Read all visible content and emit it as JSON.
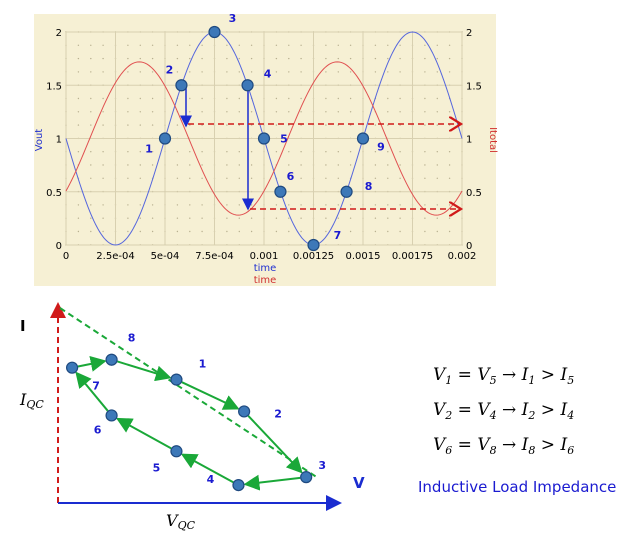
{
  "chart_data": [
    {
      "type": "line",
      "x_ticks": [
        "0",
        "2.5e-04",
        "5e-04",
        "7.5e-04",
        "0.001",
        "0.00125",
        "0.0015",
        "0.00175",
        "0.002"
      ],
      "xlim": [
        0,
        0.002
      ],
      "ylim": [
        0,
        2
      ],
      "left_ticks": [
        "0",
        "0.5",
        "1",
        "1.5",
        "2"
      ],
      "right_ticks": [
        "0",
        "0.5",
        "1",
        "1.5",
        "2"
      ],
      "ylabel_left": "Vout",
      "ylabel_right": "Itotal",
      "xlabel_series1": "time",
      "xlabel_series2": "time",
      "series": [
        {
          "name": "Vout",
          "color": "#5566dd",
          "period": 0.001,
          "offset": 1,
          "amplitude": 1,
          "phase_note": "x=0 at offset, min at 2.5e-04, max at 7.5e-04",
          "x": [
            0,
            0.00025,
            0.0005,
            0.00075,
            0.001,
            0.00125,
            0.0015,
            0.00175,
            0.002
          ],
          "y": [
            1,
            0,
            1,
            2,
            1,
            0,
            1,
            2,
            1
          ]
        },
        {
          "name": "Itotal",
          "color": "#e05050",
          "x": [
            0,
            0.00037,
            0.00087,
            0.00137,
            0.00187,
            0.002
          ],
          "y": [
            1,
            1.75,
            0.3,
            1.7,
            0.3,
            0.7
          ]
        }
      ],
      "points": [
        {
          "label": "1",
          "x": 0.0005,
          "y": 1.0
        },
        {
          "label": "2",
          "x": 0.000583,
          "y": 1.5
        },
        {
          "label": "3",
          "x": 0.00075,
          "y": 2.0
        },
        {
          "label": "4",
          "x": 0.000917,
          "y": 1.5
        },
        {
          "label": "5",
          "x": 0.001,
          "y": 1.0
        },
        {
          "label": "6",
          "x": 0.001083,
          "y": 0.5
        },
        {
          "label": "7",
          "x": 0.00125,
          "y": 0.0
        },
        {
          "label": "8",
          "x": 0.001417,
          "y": 0.5
        },
        {
          "label": "9",
          "x": 0.0015,
          "y": 1.0
        }
      ]
    },
    {
      "type": "diagram",
      "ylabel": "I",
      "xlabel": "V",
      "axis_left_label": "I_QC",
      "axis_bottom_label": "V_QC",
      "points": [
        {
          "label": "1",
          "v": 0.42,
          "i": 0.62
        },
        {
          "label": "2",
          "v": 0.66,
          "i": 0.46
        },
        {
          "label": "3",
          "v": 0.88,
          "i": 0.13
        },
        {
          "label": "4",
          "v": 0.64,
          "i": 0.09
        },
        {
          "label": "5",
          "v": 0.42,
          "i": 0.26
        },
        {
          "label": "6",
          "v": 0.19,
          "i": 0.44
        },
        {
          "label": "7",
          "v": 0.05,
          "i": 0.68
        },
        {
          "label": "8",
          "v": 0.19,
          "i": 0.72
        }
      ]
    }
  ],
  "equations": [
    {
      "lhs": "V1 = V5",
      "rhs": "I1 > I5"
    },
    {
      "lhs": "V2 = V4",
      "rhs": "I2 > I4"
    },
    {
      "lhs": "V6 = V8",
      "rhs": "I8 > I6"
    }
  ],
  "caption": "Inductive Load Impedance"
}
